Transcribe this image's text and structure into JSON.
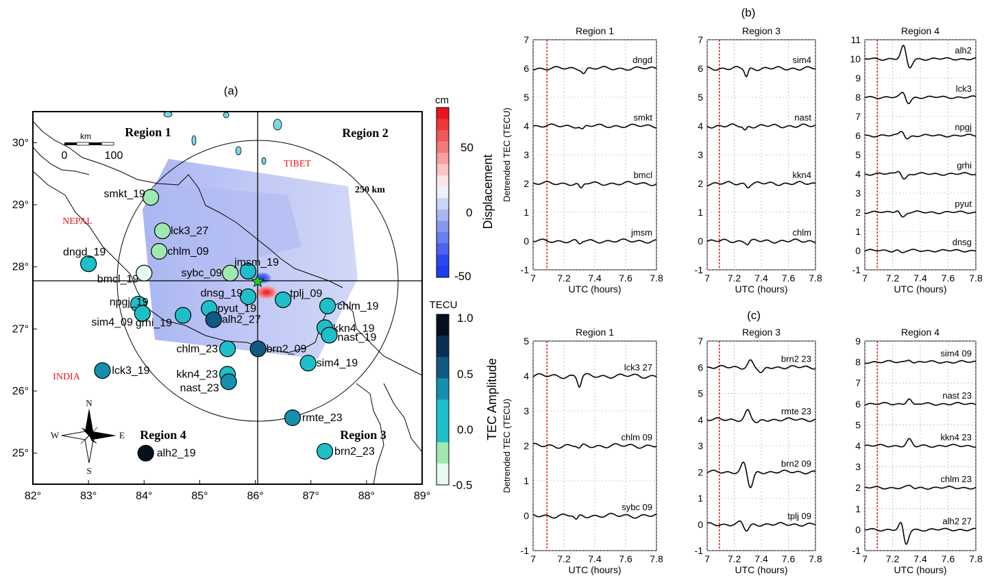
{
  "panel_a": {
    "label": "(a)",
    "regions": [
      "Region 1",
      "Region 2",
      "Region 3",
      "Region 4"
    ],
    "countries": [
      "NEPAL",
      "TIBET",
      "INDIA"
    ],
    "ring_label": "250 km",
    "scale_bar": {
      "unit": "km",
      "ticks": [
        "0",
        "100"
      ]
    },
    "compass": {
      "n": "N",
      "s": "S",
      "e": "E",
      "w": "W"
    },
    "lon_ticks": [
      "82°",
      "83°",
      "84°",
      "85°",
      "86°",
      "87°",
      "88°",
      "89°"
    ],
    "lat_ticks": [
      "30°",
      "29°",
      "28°",
      "27°",
      "26°",
      "25°"
    ],
    "displacement_bar": {
      "unit": "cm",
      "title": "Displacement",
      "ticks": [
        "50",
        "0",
        "-50"
      ]
    },
    "tec_bar": {
      "unit": "TECU",
      "title": "TEC Amplitude",
      "ticks": [
        "1.0",
        "0.5",
        "0.0",
        "-0.5"
      ]
    },
    "colors": {
      "tec_levels": [
        "#e8faf0",
        "#9fe8b0",
        "#1ebfc9",
        "#168fae",
        "#0f5a82",
        "#0a2f54",
        "#05101f"
      ],
      "disp_pos": "#e8141e",
      "disp_neg": "#1b3cf0",
      "disp_field": "#b4bef3"
    }
  },
  "stations": [
    {
      "label": "smkt_19",
      "lon": 84.12,
      "lat": 29.12,
      "tec": 0.1
    },
    {
      "label": "lck3_27",
      "lon": 84.33,
      "lat": 28.58,
      "tec": 0.1
    },
    {
      "label": "chlm_09",
      "lon": 84.27,
      "lat": 28.25,
      "tec": 0.1
    },
    {
      "label": "dngd_19",
      "lon": 83.0,
      "lat": 28.05,
      "tec": 0.3
    },
    {
      "label": "bmcl_19",
      "lon": 84.0,
      "lat": 27.9,
      "tec": -0.3
    },
    {
      "label": "sybc_09",
      "lon": 85.55,
      "lat": 27.9,
      "tec": 0.1
    },
    {
      "label": "jmsm_19",
      "lon": 85.87,
      "lat": 27.93,
      "tec": 0.3
    },
    {
      "label": "dnsg_19",
      "lon": 85.87,
      "lat": 27.52,
      "tec": 0.3
    },
    {
      "label": "tplj_09",
      "lon": 86.5,
      "lat": 27.47,
      "tec": 0.3
    },
    {
      "label": "chlm_19",
      "lon": 87.3,
      "lat": 27.37,
      "tec": 0.3
    },
    {
      "label": "npgj_19",
      "lon": 83.9,
      "lat": 27.4,
      "tec": 0.3
    },
    {
      "label": "sim4_09",
      "lon": 83.97,
      "lat": 27.25,
      "tec": 0.3
    },
    {
      "label": "grhi_19",
      "lon": 84.7,
      "lat": 27.22,
      "tec": 0.3
    },
    {
      "label": "pyut_19",
      "lon": 85.17,
      "lat": 27.33,
      "tec": 0.3
    },
    {
      "label": "alh2_27",
      "lon": 85.25,
      "lat": 27.15,
      "tec": 0.6
    },
    {
      "label": "kkn4_19",
      "lon": 87.25,
      "lat": 27.02,
      "tec": 0.3
    },
    {
      "label": "nast_19",
      "lon": 87.33,
      "lat": 26.9,
      "tec": 0.3
    },
    {
      "label": "chlm_23",
      "lon": 85.5,
      "lat": 26.68,
      "tec": 0.3
    },
    {
      "label": "brn2_09",
      "lon": 86.05,
      "lat": 26.68,
      "tec": 0.6
    },
    {
      "label": "sim4_19",
      "lon": 86.95,
      "lat": 26.45,
      "tec": 0.3
    },
    {
      "label": "lck3_19",
      "lon": 83.25,
      "lat": 26.33,
      "tec": 0.45
    },
    {
      "label": "kkn4_23",
      "lon": 85.5,
      "lat": 26.27,
      "tec": 0.3
    },
    {
      "label": "nast_23",
      "lon": 85.52,
      "lat": 26.15,
      "tec": 0.45
    },
    {
      "label": "rmte_23",
      "lon": 86.67,
      "lat": 25.57,
      "tec": 0.45
    },
    {
      "label": "alh2_19",
      "lon": 84.03,
      "lat": 25.0,
      "tec": 1.0
    },
    {
      "label": "brn2_23",
      "lon": 87.25,
      "lat": 25.03,
      "tec": 0.3
    }
  ],
  "panel_b_label": "(b)",
  "panel_c_label": "(c)",
  "chart_data": [
    {
      "type": "line",
      "panel": "b",
      "title": "Region 1",
      "xlabel": "UTC (hours)",
      "ylabel": "Detrended TEC (TECU)",
      "xlim": [
        7,
        7.8
      ],
      "ylim": [
        -1,
        7
      ],
      "xticks": [
        "7",
        "7.2",
        "7.4",
        "7.6",
        "7.8"
      ],
      "yticks": [
        "7",
        "6",
        "5",
        "4",
        "3",
        "2",
        "1",
        "0",
        "-1"
      ],
      "event_x": 7.09,
      "series": [
        {
          "name": "dngd",
          "offset": 6,
          "dip": [
            7.33,
            -0.15
          ]
        },
        {
          "name": "smkt",
          "offset": 4,
          "dip": [
            7.32,
            -0.12
          ]
        },
        {
          "name": "bmcl",
          "offset": 2,
          "dip": [
            7.31,
            -0.2
          ]
        },
        {
          "name": "jmsm",
          "offset": 0,
          "dip": [
            7.3,
            -0.12
          ]
        }
      ]
    },
    {
      "type": "line",
      "panel": "b",
      "title": "Region 3",
      "xlabel": "UTC (hours)",
      "xlim": [
        7,
        7.8
      ],
      "ylim": [
        -1,
        7
      ],
      "xticks": [
        "7",
        "7.2",
        "7.4",
        "7.6",
        "7.8"
      ],
      "yticks": [
        "7",
        "6",
        "5",
        "4",
        "3",
        "2",
        "1",
        "0",
        "-1"
      ],
      "event_x": 7.09,
      "series": [
        {
          "name": "sim4",
          "offset": 6,
          "dip": [
            7.29,
            -0.28
          ]
        },
        {
          "name": "nast",
          "offset": 4,
          "dip": [
            7.28,
            -0.15
          ]
        },
        {
          "name": "kkn4",
          "offset": 2,
          "dip": [
            7.3,
            -0.1
          ]
        },
        {
          "name": "chlm",
          "offset": 0,
          "dip": [
            7.3,
            -0.1
          ]
        }
      ]
    },
    {
      "type": "line",
      "panel": "b",
      "title": "Region 4",
      "xlabel": "UTC (hours)",
      "xlim": [
        7,
        7.8
      ],
      "ylim": [
        -1,
        11
      ],
      "xticks": [
        "7",
        "7.2",
        "7.4",
        "7.6",
        "7.8"
      ],
      "yticks": [
        "11",
        "10",
        "9",
        "8",
        "7",
        "6",
        "5",
        "4",
        "3",
        "2",
        "1",
        "0",
        "-1"
      ],
      "event_x": 7.09,
      "series": [
        {
          "name": "alh2",
          "offset": 10,
          "spike": [
            7.28,
            0.7,
            7.32,
            -0.5
          ]
        },
        {
          "name": "lck3",
          "offset": 8,
          "spike": [
            7.28,
            0.3,
            7.31,
            -0.35
          ]
        },
        {
          "name": "npgj",
          "offset": 6,
          "spike": [
            7.27,
            0.3,
            7.3,
            -0.2
          ]
        },
        {
          "name": "grhi",
          "offset": 4,
          "spike": [
            7.25,
            0.25,
            7.28,
            -0.3
          ]
        },
        {
          "name": "pyut",
          "offset": 2,
          "spike": [
            7.24,
            0.2,
            7.27,
            -0.3
          ]
        },
        {
          "name": "dnsg",
          "offset": 0,
          "spike": [
            7.24,
            0.1,
            7.26,
            -0.15
          ]
        }
      ]
    },
    {
      "type": "line",
      "panel": "c",
      "title": "Region 1",
      "xlabel": "UTC (hours)",
      "ylabel": "Detrended TEC (TECU)",
      "xlim": [
        7,
        7.8
      ],
      "ylim": [
        -1,
        5
      ],
      "xticks": [
        "7",
        "7.2",
        "7.4",
        "7.6",
        "7.8"
      ],
      "yticks": [
        "5",
        "4",
        "3",
        "2",
        "1",
        "0",
        "-1"
      ],
      "event_x": 7.09,
      "series": [
        {
          "name": "lck3 27",
          "offset": 4,
          "dip": [
            7.3,
            -0.3
          ]
        },
        {
          "name": "chlm 09",
          "offset": 2,
          "dip": [
            7.3,
            -0.1
          ]
        },
        {
          "name": "sybc 09",
          "offset": 0,
          "dip": [
            7.28,
            -0.15
          ]
        }
      ]
    },
    {
      "type": "line",
      "panel": "c",
      "title": "Region 3",
      "xlabel": "UTC (hours)",
      "xlim": [
        7,
        7.8
      ],
      "ylim": [
        -1,
        7
      ],
      "xticks": [
        "7",
        "7.2",
        "7.4",
        "7.6",
        "7.8"
      ],
      "yticks": [
        "7",
        "6",
        "5",
        "4",
        "3",
        "2",
        "1",
        "0",
        "-1"
      ],
      "event_x": 7.09,
      "series": [
        {
          "name": "brn2 23",
          "offset": 6,
          "spike": [
            7.32,
            0.25,
            7.4,
            -0.25
          ]
        },
        {
          "name": "rmte 23",
          "offset": 4,
          "spike": [
            7.3,
            0.35,
            7.37,
            -0.15
          ]
        },
        {
          "name": "brn2 09",
          "offset": 2,
          "spike": [
            7.27,
            0.35,
            7.32,
            -0.6
          ]
        },
        {
          "name": "tplj 09",
          "offset": 0,
          "spike": [
            7.25,
            0.1,
            7.29,
            -0.25
          ]
        }
      ]
    },
    {
      "type": "line",
      "panel": "c",
      "title": "Region 4",
      "xlabel": "UTC (hours)",
      "xlim": [
        7,
        7.8
      ],
      "ylim": [
        -1,
        9
      ],
      "xticks": [
        "7",
        "7.2",
        "7.4",
        "7.6",
        "7.8"
      ],
      "yticks": [
        "9",
        "8",
        "7",
        "6",
        "5",
        "4",
        "3",
        "2",
        "1",
        "0",
        "-1"
      ],
      "event_x": 7.09,
      "series": [
        {
          "name": "sim4 09",
          "offset": 8,
          "spike": [
            7.32,
            0.15,
            7.36,
            -0.05
          ]
        },
        {
          "name": "nast 23",
          "offset": 6,
          "spike": [
            7.32,
            0.3,
            7.35,
            -0.1
          ]
        },
        {
          "name": "kkn4 23",
          "offset": 4,
          "spike": [
            7.32,
            0.3,
            7.36,
            -0.05
          ]
        },
        {
          "name": "chlm 23",
          "offset": 2,
          "spike": [
            7.33,
            0.1,
            7.36,
            -0.05
          ]
        },
        {
          "name": "alh2 27",
          "offset": 0,
          "spike": [
            7.27,
            0.7,
            7.29,
            -1.0
          ]
        }
      ]
    }
  ]
}
